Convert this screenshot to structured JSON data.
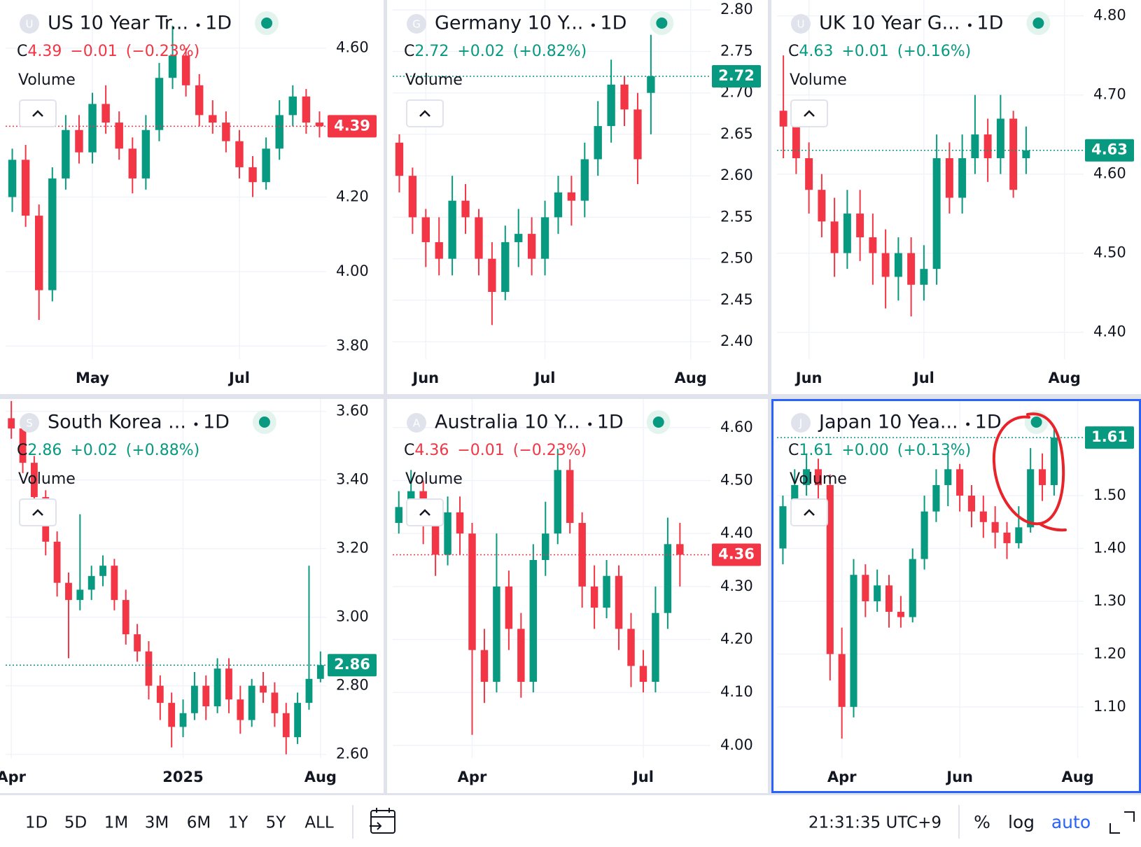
{
  "chart_data": [
    {
      "type": "candlestick",
      "symbol": "U",
      "title": "US 10 Year Tr...",
      "interval": "1D",
      "last_prefix": "C",
      "last": 4.39,
      "change": "−0.01",
      "change_pct": "(−0.23%)",
      "volume_label": "Volume",
      "color": "#f23645",
      "up_color": "#089981",
      "down_color": "#f23645",
      "categories": [
        null,
        null,
        null,
        null,
        null,
        null,
        "May",
        null,
        null,
        null,
        null,
        null,
        null,
        null,
        null,
        null,
        null,
        "Jul",
        null,
        null,
        null,
        null,
        null,
        null
      ],
      "open": [
        4.2,
        4.3,
        4.15,
        3.95,
        4.25,
        4.38,
        4.32,
        4.45,
        4.4,
        4.33,
        4.25,
        4.38,
        4.52,
        4.58,
        4.5,
        4.42,
        4.4,
        4.35,
        4.28,
        4.24,
        4.33,
        4.42,
        4.47,
        4.4
      ],
      "high": [
        4.33,
        4.34,
        4.18,
        4.28,
        4.42,
        4.42,
        4.48,
        4.5,
        4.43,
        4.36,
        4.42,
        4.56,
        4.66,
        4.6,
        4.53,
        4.46,
        4.43,
        4.38,
        4.31,
        4.36,
        4.46,
        4.5,
        4.49,
        4.43
      ],
      "low": [
        4.16,
        4.12,
        3.87,
        3.92,
        4.22,
        4.29,
        4.29,
        4.37,
        4.3,
        4.21,
        4.22,
        4.35,
        4.49,
        4.47,
        4.39,
        4.37,
        4.32,
        4.25,
        4.2,
        4.22,
        4.3,
        4.39,
        4.37,
        4.36
      ],
      "close": [
        4.3,
        4.15,
        3.95,
        4.25,
        4.38,
        4.32,
        4.45,
        4.4,
        4.33,
        4.25,
        4.38,
        4.52,
        4.58,
        4.5,
        4.42,
        4.4,
        4.35,
        4.28,
        4.24,
        4.33,
        4.42,
        4.47,
        4.4,
        4.39
      ],
      "ylim": [
        3.765,
        4.729
      ],
      "yticks": [
        {
          "value": 3.8,
          "label": "3.80"
        },
        {
          "value": 4,
          "label": "4.00"
        },
        {
          "value": 4.2,
          "label": "4.20"
        },
        {
          "value": 4.6,
          "label": "4.60"
        }
      ]
    },
    {
      "type": "candlestick",
      "symbol": "G",
      "title": "Germany 10 Y...",
      "interval": "1D",
      "last_prefix": "C",
      "last": 2.72,
      "change": "+0.02",
      "change_pct": "(+0.82%)",
      "volume_label": "Volume",
      "color": "#089981",
      "up_color": "#089981",
      "down_color": "#f23645",
      "categories": [
        null,
        null,
        "Jun",
        null,
        null,
        null,
        null,
        null,
        null,
        null,
        null,
        "Jul",
        null,
        null,
        null,
        null,
        null,
        null,
        null,
        null,
        null,
        null,
        "Aug",
        null
      ],
      "open": [
        2.64,
        2.6,
        2.55,
        2.52,
        2.5,
        2.57,
        2.55,
        2.5,
        2.46,
        2.52,
        2.53,
        2.5,
        2.55,
        2.58,
        2.57,
        2.62,
        2.66,
        2.71,
        2.68,
        2.7,
        null,
        null,
        null,
        null
      ],
      "high": [
        2.65,
        2.61,
        2.56,
        2.55,
        2.6,
        2.59,
        2.56,
        2.52,
        2.54,
        2.56,
        2.55,
        2.57,
        2.6,
        2.6,
        2.64,
        2.69,
        2.74,
        2.72,
        2.7,
        2.77,
        null,
        null,
        null,
        null
      ],
      "low": [
        2.58,
        2.53,
        2.49,
        2.48,
        2.48,
        2.53,
        2.48,
        2.42,
        2.45,
        2.49,
        2.48,
        2.48,
        2.53,
        2.54,
        2.55,
        2.6,
        2.64,
        2.66,
        2.59,
        2.65,
        null,
        null,
        null,
        null
      ],
      "close": [
        2.6,
        2.55,
        2.52,
        2.5,
        2.57,
        2.55,
        2.5,
        2.46,
        2.52,
        2.53,
        2.5,
        2.55,
        2.58,
        2.57,
        2.62,
        2.66,
        2.71,
        2.68,
        2.62,
        2.72,
        null,
        null,
        null,
        null
      ],
      "ylim": [
        2.379,
        2.812
      ],
      "yticks": [
        {
          "value": 2.4,
          "label": "2.40"
        },
        2.45,
        {
          "value": 2.5,
          "label": "2.50"
        },
        2.55,
        {
          "value": 2.6,
          "label": "2.60"
        },
        2.65,
        {
          "value": 2.7,
          "label": "2.70"
        },
        2.75,
        {
          "value": 2.8,
          "label": "2.80"
        }
      ]
    },
    {
      "type": "candlestick",
      "symbol": "U",
      "title": "UK 10 Year G...",
      "interval": "1D",
      "last_prefix": "C",
      "last": 4.63,
      "change": "+0.01",
      "change_pct": "(+0.16%)",
      "volume_label": "Volume",
      "color": "#089981",
      "up_color": "#089981",
      "down_color": "#f23645",
      "categories": [
        null,
        null,
        "Jun",
        null,
        null,
        null,
        null,
        null,
        null,
        null,
        null,
        "Jul",
        null,
        null,
        null,
        null,
        null,
        null,
        null,
        null,
        null,
        null,
        "Aug",
        null
      ],
      "open": [
        4.68,
        4.66,
        4.62,
        4.58,
        4.54,
        4.5,
        4.55,
        4.52,
        4.5,
        4.47,
        4.5,
        4.46,
        4.48,
        4.62,
        4.57,
        4.62,
        4.65,
        4.62,
        4.67,
        4.62,
        null,
        null,
        null,
        null
      ],
      "high": [
        4.75,
        4.69,
        4.64,
        4.6,
        4.57,
        4.58,
        4.58,
        4.55,
        4.53,
        4.52,
        4.52,
        4.51,
        4.65,
        4.64,
        4.65,
        4.7,
        4.67,
        4.7,
        4.68,
        4.66,
        null,
        null,
        null,
        null
      ],
      "low": [
        4.62,
        4.6,
        4.55,
        4.52,
        4.47,
        4.48,
        4.49,
        4.46,
        4.43,
        4.44,
        4.42,
        4.44,
        4.46,
        4.55,
        4.55,
        4.6,
        4.59,
        4.6,
        4.57,
        4.6,
        null,
        null,
        null,
        null
      ],
      "close": [
        4.66,
        4.62,
        4.58,
        4.54,
        4.5,
        4.55,
        4.52,
        4.5,
        4.47,
        4.5,
        4.46,
        4.48,
        4.62,
        4.57,
        4.62,
        4.65,
        4.62,
        4.67,
        4.58,
        4.63,
        null,
        null,
        null,
        null
      ],
      "ylim": [
        4.366,
        4.82
      ],
      "yticks": [
        {
          "value": 4.4,
          "label": "4.40"
        },
        {
          "value": 4.5,
          "label": "4.50"
        },
        {
          "value": 4.6,
          "label": "4.60"
        },
        {
          "value": 4.7,
          "label": "4.70"
        },
        {
          "value": 4.8,
          "label": "4.80"
        }
      ]
    },
    {
      "type": "candlestick",
      "symbol": "S",
      "title": "South Korea ...",
      "interval": "1D",
      "last_prefix": "C",
      "last": 2.86,
      "change": "+0.02",
      "change_pct": "(+0.88%)",
      "volume_label": "Volume",
      "color": "#089981",
      "up_color": "#089981",
      "down_color": "#f23645",
      "categories": [
        "Apr",
        null,
        null,
        null,
        null,
        null,
        null,
        null,
        null,
        null,
        null,
        null,
        null,
        null,
        null,
        "2025",
        null,
        null,
        null,
        null,
        null,
        null,
        null,
        null,
        null,
        null,
        null,
        "Aug"
      ],
      "open": [
        3.58,
        3.55,
        3.45,
        3.35,
        3.22,
        3.1,
        3.05,
        3.08,
        3.12,
        3.15,
        3.05,
        2.95,
        2.9,
        2.8,
        2.75,
        2.68,
        2.72,
        2.8,
        2.74,
        2.85,
        2.76,
        2.7,
        2.8,
        2.78,
        2.72,
        2.65,
        2.75,
        2.82
      ],
      "high": [
        3.63,
        3.58,
        3.47,
        3.37,
        3.25,
        3.13,
        3.3,
        3.15,
        3.18,
        3.17,
        3.08,
        2.98,
        2.93,
        2.83,
        2.78,
        2.76,
        2.84,
        2.83,
        2.88,
        2.88,
        2.8,
        2.82,
        2.84,
        2.81,
        2.75,
        2.78,
        3.15,
        2.9
      ],
      "low": [
        3.52,
        3.42,
        3.32,
        3.18,
        3.06,
        2.88,
        3.02,
        3.05,
        3.09,
        3.02,
        2.92,
        2.87,
        2.76,
        2.7,
        2.62,
        2.65,
        2.7,
        2.7,
        2.72,
        2.72,
        2.66,
        2.68,
        2.75,
        2.68,
        2.6,
        2.63,
        2.73,
        2.81
      ],
      "close": [
        3.55,
        3.45,
        3.35,
        3.22,
        3.1,
        3.05,
        3.08,
        3.12,
        3.15,
        3.05,
        2.95,
        2.9,
        2.8,
        2.75,
        2.68,
        2.72,
        2.8,
        2.74,
        2.85,
        2.76,
        2.7,
        2.8,
        2.78,
        2.72,
        2.65,
        2.75,
        2.82,
        2.86
      ],
      "ylim": [
        2.589,
        3.636
      ],
      "yticks": [
        {
          "value": 2.6,
          "label": "2.60"
        },
        {
          "value": 2.8,
          "label": "2.80"
        },
        {
          "value": 3,
          "label": "3.00"
        },
        {
          "value": 3.2,
          "label": "3.20"
        },
        {
          "value": 3.4,
          "label": "3.40"
        },
        {
          "value": 3.6,
          "label": "3.60"
        }
      ]
    },
    {
      "type": "candlestick",
      "symbol": "A",
      "title": "Australia 10 Y...",
      "interval": "1D",
      "last_prefix": "C",
      "last": 4.36,
      "change": "−0.01",
      "change_pct": "(−0.23%)",
      "volume_label": "Volume",
      "color": "#f23645",
      "up_color": "#089981",
      "down_color": "#f23645",
      "categories": [
        null,
        null,
        null,
        null,
        null,
        null,
        "Apr",
        null,
        null,
        null,
        null,
        null,
        null,
        null,
        null,
        null,
        null,
        null,
        null,
        null,
        "Jul",
        null,
        null,
        null,
        null,
        null
      ],
      "open": [
        4.42,
        4.45,
        4.48,
        4.42,
        4.36,
        4.44,
        4.4,
        4.18,
        4.12,
        4.3,
        4.22,
        4.12,
        4.35,
        4.4,
        4.52,
        4.42,
        4.3,
        4.26,
        4.32,
        4.22,
        4.15,
        4.12,
        4.25,
        4.38,
        null,
        null
      ],
      "high": [
        4.48,
        4.52,
        4.5,
        4.44,
        4.47,
        4.47,
        4.42,
        4.22,
        4.4,
        4.33,
        4.25,
        4.38,
        4.46,
        4.56,
        4.54,
        4.44,
        4.34,
        4.35,
        4.34,
        4.25,
        4.18,
        4.3,
        4.43,
        4.42,
        null,
        null
      ],
      "low": [
        4.4,
        4.43,
        4.38,
        4.32,
        4.34,
        4.36,
        4.02,
        4.08,
        4.1,
        4.18,
        4.09,
        4.1,
        4.32,
        4.38,
        4.4,
        4.26,
        4.22,
        4.24,
        4.18,
        4.11,
        4.1,
        4.1,
        4.22,
        4.3,
        null,
        null
      ],
      "close": [
        4.45,
        4.48,
        4.42,
        4.36,
        4.44,
        4.4,
        4.18,
        4.12,
        4.3,
        4.22,
        4.12,
        4.35,
        4.4,
        4.52,
        4.42,
        4.3,
        4.26,
        4.32,
        4.22,
        4.15,
        4.12,
        4.25,
        4.38,
        4.36,
        null,
        null
      ],
      "ylim": [
        3.976,
        4.654
      ],
      "yticks": [
        {
          "value": 4,
          "label": "4.00"
        },
        {
          "value": 4.1,
          "label": "4.10"
        },
        {
          "value": 4.2,
          "label": "4.20"
        },
        {
          "value": 4.3,
          "label": "4.30"
        },
        {
          "value": 4.4,
          "label": "4.40"
        },
        {
          "value": 4.5,
          "label": "4.50"
        },
        {
          "value": 4.6,
          "label": "4.60"
        }
      ]
    },
    {
      "type": "candlestick",
      "symbol": "J",
      "title": "Japan 10 Yea...",
      "interval": "1D",
      "last_prefix": "C",
      "last": 1.61,
      "change": "+0.00",
      "change_pct": "(+0.13%)",
      "volume_label": "Volume",
      "color": "#089981",
      "up_color": "#089981",
      "down_color": "#f23645",
      "selected": true,
      "categories": [
        null,
        null,
        null,
        null,
        null,
        "Apr",
        null,
        null,
        null,
        null,
        null,
        null,
        null,
        null,
        null,
        "Jun",
        null,
        null,
        null,
        null,
        null,
        null,
        null,
        null,
        null,
        "Aug"
      ],
      "open": [
        1.4,
        1.48,
        1.52,
        1.55,
        1.52,
        1.2,
        1.1,
        1.35,
        1.3,
        1.33,
        1.28,
        1.27,
        1.38,
        1.47,
        1.52,
        1.55,
        1.5,
        1.47,
        1.45,
        1.43,
        1.41,
        1.44,
        1.55,
        1.52,
        null,
        null
      ],
      "high": [
        1.5,
        1.55,
        1.58,
        1.57,
        1.54,
        1.25,
        1.38,
        1.37,
        1.36,
        1.35,
        1.31,
        1.4,
        1.5,
        1.55,
        1.58,
        1.56,
        1.52,
        1.5,
        1.48,
        1.45,
        1.48,
        1.59,
        1.58,
        1.63,
        null,
        null
      ],
      "low": [
        1.37,
        1.46,
        1.5,
        1.48,
        1.15,
        1.04,
        1.08,
        1.27,
        1.28,
        1.25,
        1.25,
        1.26,
        1.36,
        1.45,
        1.48,
        1.47,
        1.44,
        1.42,
        1.4,
        1.38,
        1.4,
        1.43,
        1.49,
        1.5,
        null,
        null
      ],
      "close": [
        1.48,
        1.52,
        1.55,
        1.52,
        1.2,
        1.1,
        1.35,
        1.3,
        1.33,
        1.28,
        1.27,
        1.38,
        1.47,
        1.52,
        1.55,
        1.5,
        1.47,
        1.45,
        1.43,
        1.41,
        1.44,
        1.55,
        1.52,
        1.61,
        null,
        null
      ],
      "ylim": [
        1.003,
        1.683
      ],
      "yticks": [
        {
          "value": 1.1,
          "label": "1.10"
        },
        {
          "value": 1.2,
          "label": "1.20"
        },
        {
          "value": 1.3,
          "label": "1.30"
        },
        {
          "value": 1.4,
          "label": "1.40"
        },
        {
          "value": 1.5,
          "label": "1.50"
        }
      ]
    }
  ],
  "toolbar": {
    "ranges": [
      "1D",
      "5D",
      "1M",
      "3M",
      "6M",
      "1Y",
      "5Y",
      "ALL"
    ],
    "time": "21:31:35 UTC+9",
    "options": [
      "%",
      "log",
      "auto"
    ]
  }
}
